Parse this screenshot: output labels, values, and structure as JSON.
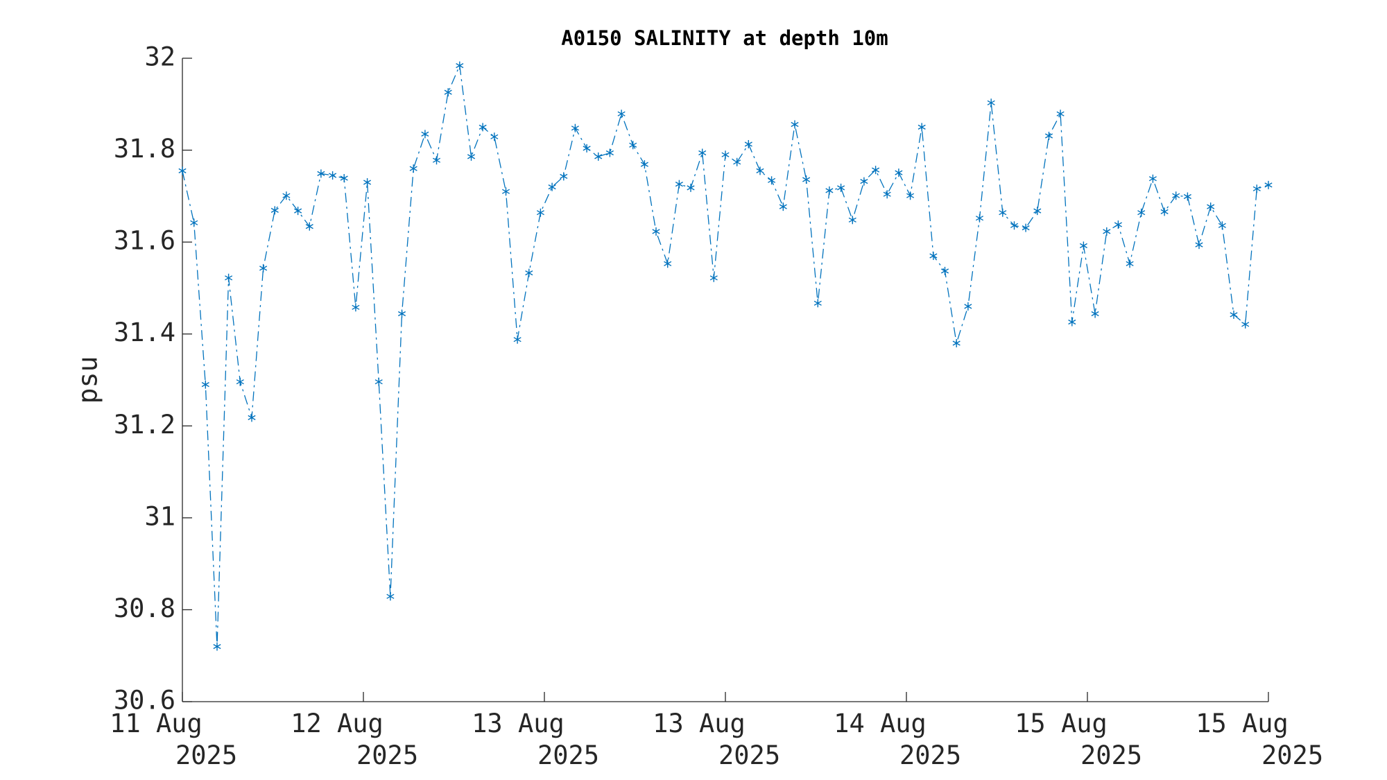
{
  "chart_data": {
    "type": "line",
    "title": "A0150 SALINITY at depth 10m",
    "ylabel": "psu",
    "color": "#0072bd",
    "line_style": "dashdot",
    "marker": "asterisk",
    "values": [
      31.755,
      31.642,
      31.29,
      30.72,
      31.522,
      31.296,
      31.218,
      31.543,
      31.669,
      31.701,
      31.668,
      31.634,
      31.749,
      31.745,
      31.739,
      31.458,
      31.73,
      31.296,
      30.829,
      31.444,
      31.76,
      31.835,
      31.778,
      31.926,
      31.984,
      31.786,
      31.85,
      31.829,
      31.71,
      31.388,
      31.533,
      31.664,
      31.72,
      31.743,
      31.848,
      31.804,
      31.786,
      31.794,
      31.879,
      31.811,
      31.769,
      31.623,
      31.553,
      31.726,
      31.718,
      31.794,
      31.522,
      31.79,
      31.774,
      31.813,
      31.755,
      31.734,
      31.677,
      31.856,
      31.736,
      31.467,
      31.712,
      31.718,
      31.648,
      31.732,
      31.757,
      31.704,
      31.751,
      31.701,
      31.85,
      31.57,
      31.537,
      31.38,
      31.46,
      31.652,
      31.903,
      31.664,
      31.636,
      31.631,
      31.668,
      31.831,
      31.879,
      31.426,
      31.592,
      31.444,
      31.623,
      31.638,
      31.553,
      31.664,
      31.738,
      31.666,
      31.701,
      31.699,
      31.594,
      31.677,
      31.636,
      31.442,
      31.421,
      31.716,
      31.724
    ],
    "xlim": [
      0,
      94
    ],
    "xticks": [
      {
        "value": 0,
        "label": "11 Aug\n2025"
      },
      {
        "value": 15.667,
        "label": "12 Aug\n2025"
      },
      {
        "value": 31.333,
        "label": "13 Aug\n2025"
      },
      {
        "value": 47,
        "label": "13 Aug\n2025"
      },
      {
        "value": 62.667,
        "label": "14 Aug\n2025"
      },
      {
        "value": 78.333,
        "label": "15 Aug\n2025"
      },
      {
        "value": 94,
        "label": "15 Aug\n2025"
      }
    ],
    "ylim": [
      30.6,
      32
    ],
    "yticks": [
      30.6,
      30.8,
      31,
      31.2,
      31.4,
      31.6,
      31.8,
      32
    ],
    "grid": false
  }
}
